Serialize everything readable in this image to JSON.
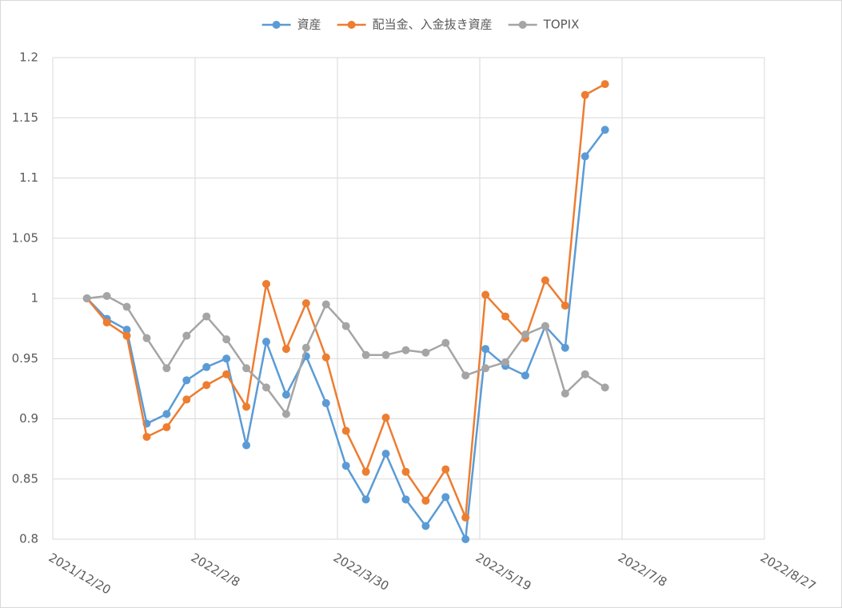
{
  "chart_data": {
    "type": "line",
    "x": [
      "2022/1/1",
      "2022/1/8",
      "2022/1/15",
      "2022/1/22",
      "2022/1/29",
      "2022/2/5",
      "2022/2/12",
      "2022/2/19",
      "2022/2/26",
      "2022/3/5",
      "2022/3/12",
      "2022/3/19",
      "2022/3/26",
      "2022/4/2",
      "2022/4/9",
      "2022/4/16",
      "2022/4/23",
      "2022/4/30",
      "2022/5/7",
      "2022/5/14",
      "2022/5/21",
      "2022/5/28",
      "2022/6/4",
      "2022/6/11",
      "2022/6/18",
      "2022/6/25",
      "2022/7/2"
    ],
    "series": [
      {
        "name": "資産",
        "color": "#5b9bd5",
        "values": [
          1.0,
          0.983,
          0.974,
          0.896,
          0.904,
          0.932,
          0.943,
          0.95,
          0.878,
          0.964,
          0.92,
          0.952,
          0.913,
          0.861,
          0.833,
          0.871,
          0.833,
          0.811,
          0.835,
          0.8,
          0.958,
          0.944,
          0.936,
          0.977,
          0.959,
          1.118,
          1.14
        ]
      },
      {
        "name": "配当金、入金抜き資産",
        "color": "#ed7d31",
        "values": [
          1.0,
          0.98,
          0.969,
          0.885,
          0.893,
          0.916,
          0.928,
          0.937,
          0.91,
          1.012,
          0.958,
          0.996,
          0.951,
          0.89,
          0.856,
          0.901,
          0.856,
          0.832,
          0.858,
          0.818,
          1.003,
          0.985,
          0.967,
          1.015,
          0.994,
          1.169,
          1.178
        ]
      },
      {
        "name": "TOPIX",
        "color": "#a5a5a5",
        "values": [
          1.0,
          1.002,
          0.993,
          0.967,
          0.942,
          0.969,
          0.985,
          0.966,
          0.942,
          0.926,
          0.904,
          0.959,
          0.995,
          0.977,
          0.953,
          0.953,
          0.957,
          0.955,
          0.963,
          0.936,
          0.942,
          0.947,
          0.97,
          0.977,
          0.921,
          0.937,
          0.926
        ]
      }
    ],
    "xlim": [
      "2021/12/20",
      "2022/8/27"
    ],
    "xticks": [
      "2021/12/20",
      "2022/2/8",
      "2022/3/30",
      "2022/5/19",
      "2022/7/8",
      "2022/8/27"
    ],
    "ylim": [
      0.8,
      1.2
    ],
    "yticks": [
      0.8,
      0.85,
      0.9,
      0.95,
      1,
      1.05,
      1.1,
      1.15,
      1.2
    ],
    "grid": true,
    "legend": "top"
  }
}
